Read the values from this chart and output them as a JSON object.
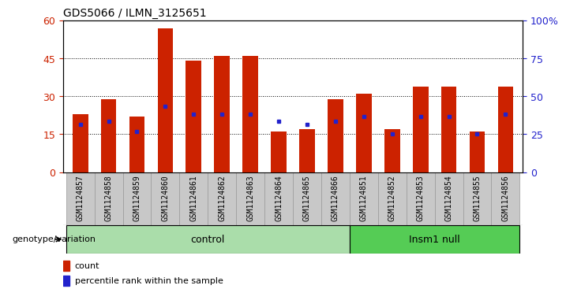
{
  "title": "GDS5066 / ILMN_3125651",
  "samples": [
    "GSM1124857",
    "GSM1124858",
    "GSM1124859",
    "GSM1124860",
    "GSM1124861",
    "GSM1124862",
    "GSM1124863",
    "GSM1124864",
    "GSM1124865",
    "GSM1124866",
    "GSM1124851",
    "GSM1124852",
    "GSM1124853",
    "GSM1124854",
    "GSM1124855",
    "GSM1124856"
  ],
  "counts": [
    23,
    29,
    22,
    57,
    44,
    46,
    46,
    16,
    17,
    29,
    31,
    17,
    34,
    34,
    16,
    34
  ],
  "percentiles": [
    19,
    20,
    16,
    26,
    23,
    23,
    23,
    20,
    19,
    20,
    22,
    15,
    22,
    22,
    15,
    23
  ],
  "bar_color": "#cc2200",
  "marker_color": "#2222cc",
  "ylim_left": [
    0,
    60
  ],
  "ylim_right": [
    0,
    100
  ],
  "yticks_left": [
    0,
    15,
    30,
    45,
    60
  ],
  "yticks_right": [
    0,
    25,
    50,
    75,
    100
  ],
  "ytick_labels_right": [
    "0",
    "25",
    "50",
    "75",
    "100%"
  ],
  "control_label": "control",
  "insm1_label": "Insm1 null",
  "control_count": 10,
  "insm1_count": 6,
  "group_label": "genotype/variation",
  "legend_count_label": "count",
  "legend_pct_label": "percentile rank within the sample",
  "bar_width": 0.55,
  "cell_bg": "#c8c8c8",
  "control_bg": "#aaddaa",
  "insm1_bg": "#55cc55",
  "title_fontsize": 10,
  "sample_fontsize": 7,
  "left_tick_color": "#cc2200",
  "right_tick_color": "#2222cc",
  "ytick_fontsize": 9,
  "legend_fontsize": 8,
  "group_fontsize": 9,
  "genlabel_fontsize": 8
}
